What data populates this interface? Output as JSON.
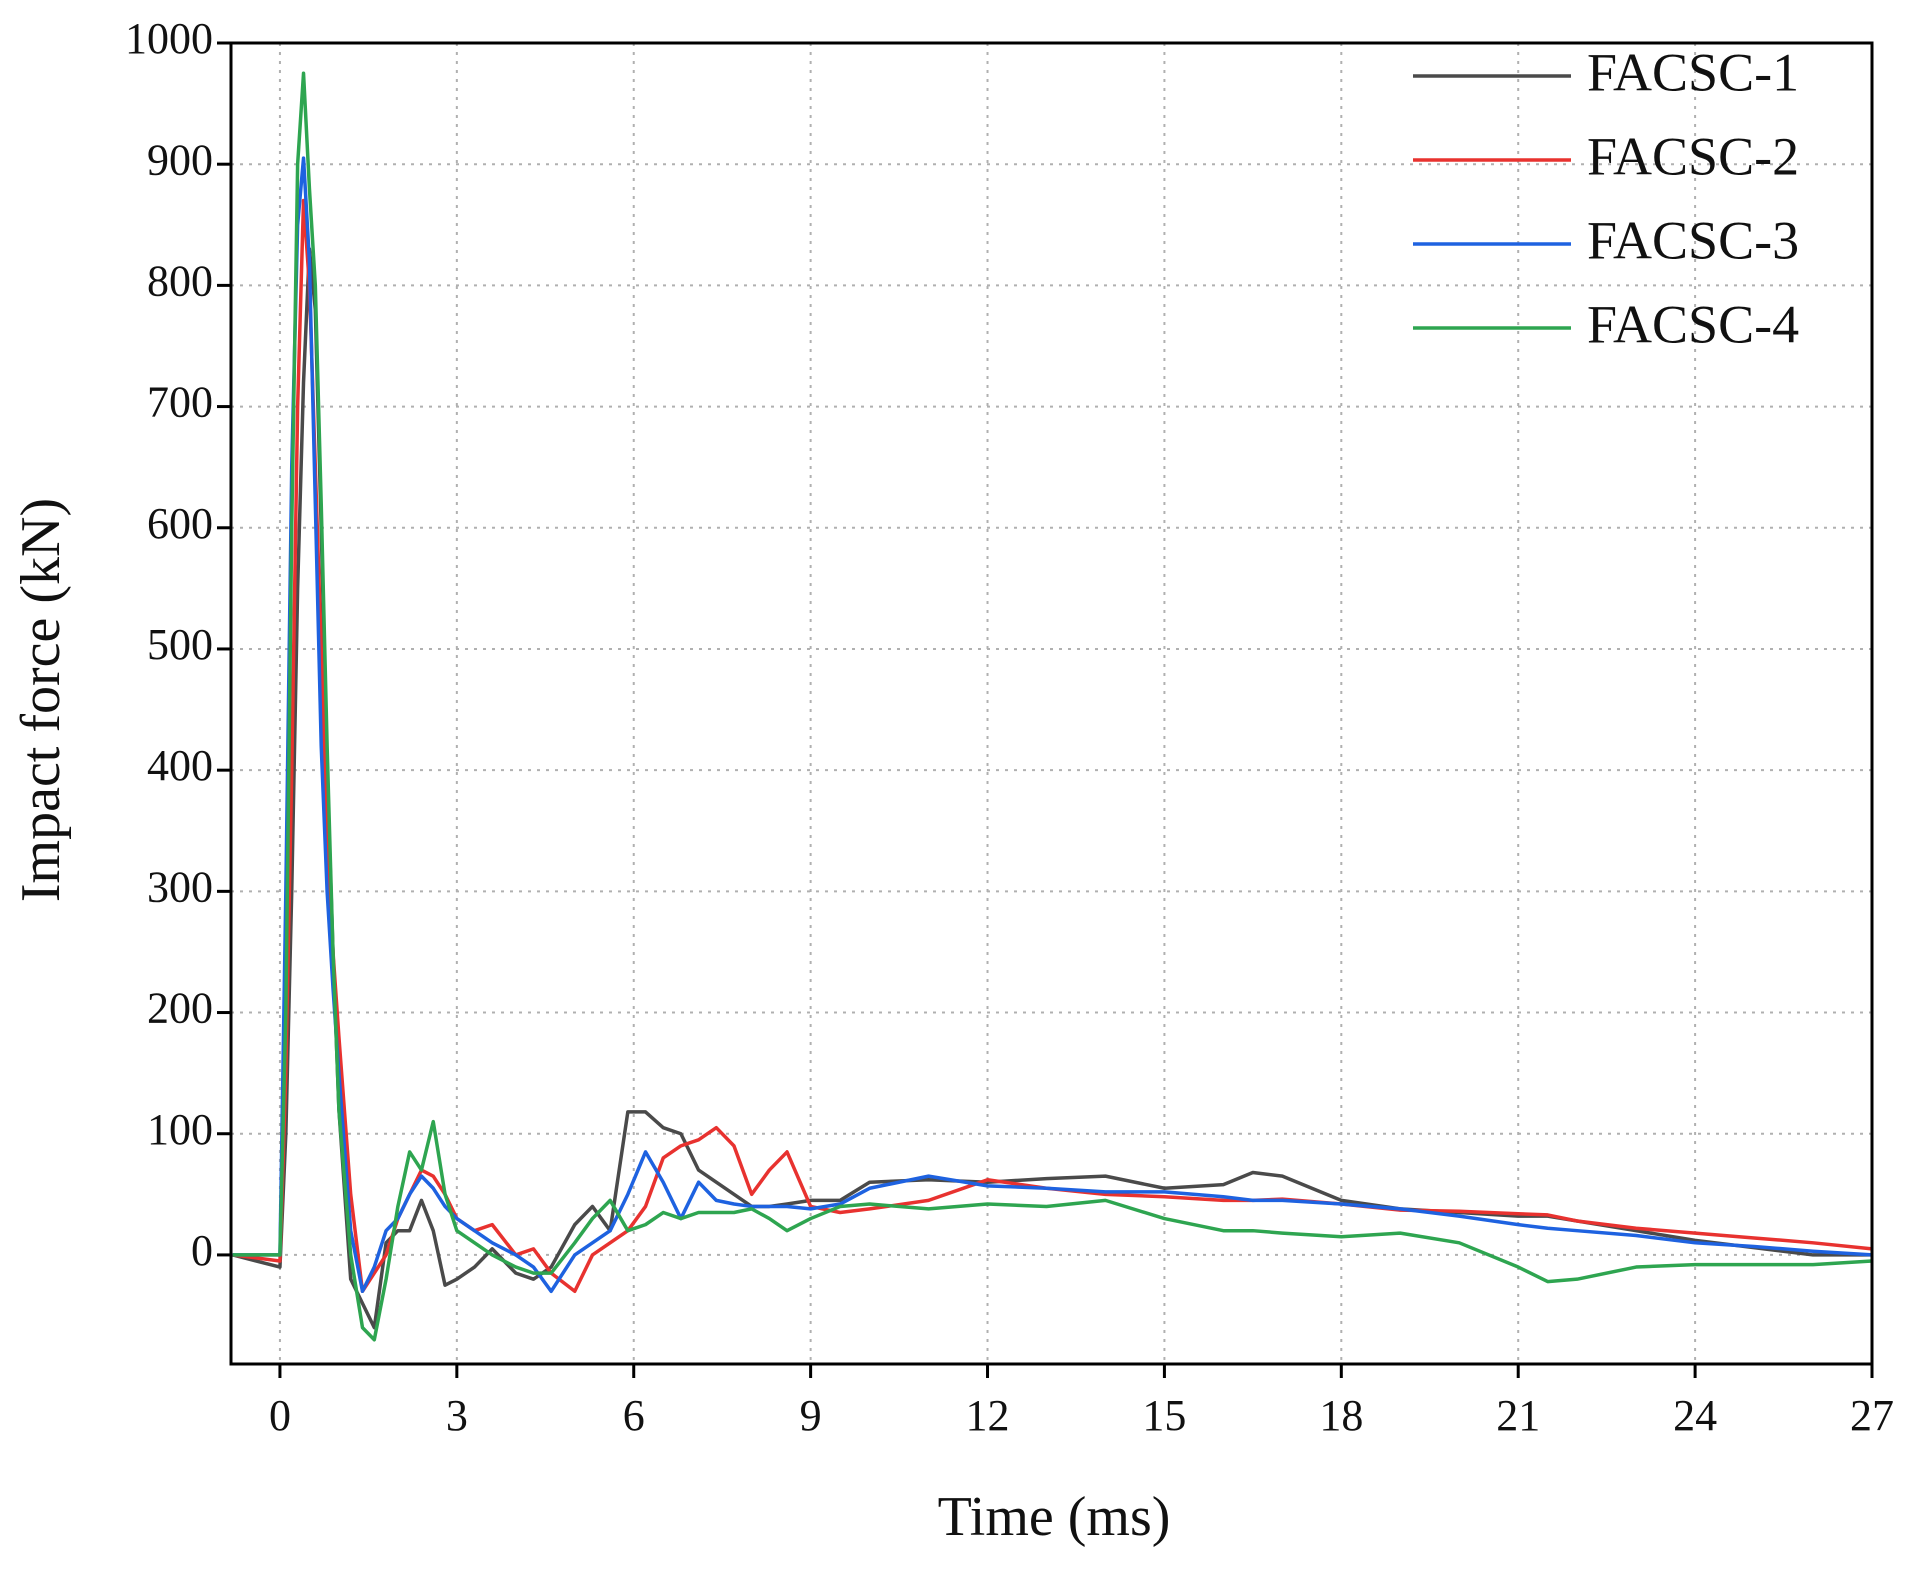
{
  "chart_data": {
    "type": "line",
    "xlabel": "Time (ms)",
    "ylabel": "Impact force (kN)",
    "x": [
      -0.8,
      0,
      0.1,
      0.2,
      0.3,
      0.4,
      0.5,
      0.6,
      0.7,
      0.8,
      0.9,
      1.0,
      1.2,
      1.4,
      1.6,
      1.8,
      2.0,
      2.2,
      2.4,
      2.6,
      2.8,
      3.0,
      3.3,
      3.6,
      4.0,
      4.3,
      4.6,
      5.0,
      5.3,
      5.6,
      5.9,
      6.2,
      6.5,
      6.8,
      7.1,
      7.4,
      7.7,
      8.0,
      8.3,
      8.6,
      9.0,
      9.5,
      10,
      11,
      12,
      13,
      14,
      15,
      16,
      16.5,
      17,
      18,
      19,
      20,
      21,
      21.5,
      22,
      23,
      24,
      25,
      26,
      27
    ],
    "series": [
      {
        "name": "FACSC-1",
        "color": "#4a4a4a",
        "values": [
          0,
          -10,
          100,
          300,
          550,
          720,
          830,
          780,
          600,
          400,
          250,
          120,
          -20,
          -40,
          -60,
          10,
          20,
          20,
          45,
          20,
          -25,
          -20,
          -10,
          5,
          -15,
          -20,
          -10,
          25,
          40,
          20,
          118,
          118,
          105,
          100,
          70,
          60,
          50,
          40,
          40,
          42,
          45,
          45,
          60,
          62,
          60,
          63,
          65,
          55,
          58,
          68,
          65,
          45,
          38,
          35,
          32,
          32,
          28,
          20,
          12,
          6,
          0,
          0
        ]
      },
      {
        "name": "FACSC-2",
        "color": "#e8322f",
        "values": [
          0,
          -5,
          150,
          400,
          700,
          870,
          800,
          650,
          500,
          350,
          250,
          180,
          50,
          -30,
          -15,
          0,
          30,
          50,
          70,
          65,
          50,
          30,
          20,
          25,
          0,
          5,
          -15,
          -30,
          0,
          10,
          20,
          40,
          80,
          90,
          95,
          105,
          90,
          50,
          70,
          85,
          40,
          35,
          38,
          45,
          62,
          55,
          50,
          48,
          45,
          45,
          46,
          42,
          37,
          36,
          34,
          33,
          28,
          22,
          18,
          14,
          10,
          5
        ]
      },
      {
        "name": "FACSC-3",
        "color": "#1e62e0",
        "values": [
          0,
          0,
          300,
          650,
          850,
          905,
          820,
          620,
          420,
          300,
          220,
          150,
          20,
          -30,
          -10,
          20,
          30,
          50,
          65,
          55,
          40,
          30,
          20,
          10,
          0,
          -10,
          -30,
          0,
          10,
          20,
          50,
          85,
          60,
          30,
          60,
          45,
          42,
          40,
          40,
          40,
          38,
          42,
          55,
          65,
          57,
          55,
          52,
          52,
          48,
          45,
          45,
          42,
          38,
          32,
          25,
          22,
          20,
          16,
          10,
          7,
          3,
          0
        ]
      },
      {
        "name": "FACSC-4",
        "color": "#2ea550",
        "values": [
          0,
          0,
          200,
          600,
          900,
          975,
          880,
          800,
          620,
          420,
          250,
          120,
          0,
          -60,
          -70,
          -20,
          40,
          85,
          70,
          110,
          50,
          20,
          10,
          0,
          -10,
          -15,
          -15,
          10,
          30,
          45,
          20,
          25,
          35,
          30,
          35,
          35,
          35,
          38,
          30,
          20,
          30,
          40,
          42,
          38,
          42,
          40,
          45,
          30,
          20,
          20,
          18,
          15,
          18,
          10,
          -10,
          -22,
          -20,
          -10,
          -8,
          -8,
          -8,
          -5
        ]
      }
    ],
    "xlim": [
      -0.83,
      27
    ],
    "xticks": [
      0,
      3,
      6,
      9,
      12,
      15,
      18,
      21,
      24,
      27
    ],
    "ylim": [
      -90,
      1000
    ],
    "yticks": [
      0,
      100,
      200,
      300,
      400,
      500,
      600,
      700,
      800,
      900,
      1000
    ],
    "grid": true,
    "legend": "upper right"
  }
}
